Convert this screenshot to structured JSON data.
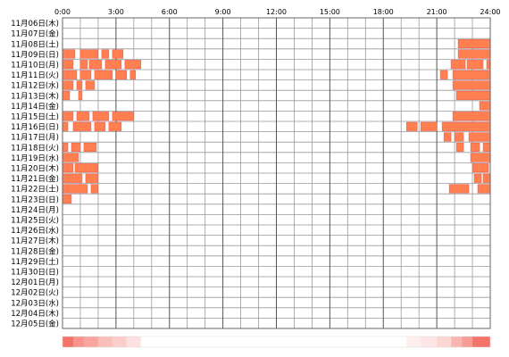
{
  "chart_data": {
    "type": "heatmap",
    "x_ticks": [
      "0:00",
      "3:00",
      "6:00",
      "9:00",
      "12:00",
      "15:00",
      "18:00",
      "21:00",
      "24:00"
    ],
    "x_range_hours": [
      0,
      24
    ],
    "rows": [
      {
        "label": "11月06日(木)",
        "segments": []
      },
      {
        "label": "11月07日(金)",
        "segments": []
      },
      {
        "label": "11月08日(土)",
        "segments": [
          [
            22.2,
            24.0
          ]
        ]
      },
      {
        "label": "11月09日(日)",
        "segments": [
          [
            0.0,
            0.7
          ],
          [
            1.0,
            2.0
          ],
          [
            2.2,
            2.6
          ],
          [
            2.8,
            3.4
          ],
          [
            22.2,
            24.0
          ]
        ]
      },
      {
        "label": "11月10日(月)",
        "segments": [
          [
            0.0,
            0.6
          ],
          [
            1.0,
            1.4
          ],
          [
            1.5,
            2.2
          ],
          [
            2.4,
            3.3
          ],
          [
            3.5,
            4.4
          ],
          [
            21.8,
            22.6
          ],
          [
            22.7,
            23.6
          ],
          [
            23.8,
            24.0
          ]
        ]
      },
      {
        "label": "11月11日(火)",
        "segments": [
          [
            0.0,
            0.8
          ],
          [
            1.0,
            1.6
          ],
          [
            1.8,
            2.8
          ],
          [
            3.0,
            3.6
          ],
          [
            3.8,
            4.1
          ],
          [
            21.2,
            21.6
          ],
          [
            21.9,
            24.0
          ]
        ]
      },
      {
        "label": "11月12日(水)",
        "segments": [
          [
            0.0,
            0.6
          ],
          [
            0.8,
            1.1
          ],
          [
            1.3,
            1.8
          ],
          [
            21.9,
            24.0
          ]
        ]
      },
      {
        "label": "11月13日(木)",
        "segments": [
          [
            0.0,
            0.4
          ],
          [
            0.9,
            1.1
          ],
          [
            22.1,
            24.0
          ]
        ]
      },
      {
        "label": "11月14日(金)",
        "segments": [
          [
            23.4,
            24.0
          ]
        ]
      },
      {
        "label": "11月15日(土)",
        "segments": [
          [
            0.0,
            0.6
          ],
          [
            0.8,
            1.5
          ],
          [
            1.7,
            2.6
          ],
          [
            2.8,
            4.0
          ],
          [
            21.9,
            24.0
          ]
        ]
      },
      {
        "label": "11月16日(日)",
        "segments": [
          [
            0.0,
            0.3
          ],
          [
            0.6,
            1.6
          ],
          [
            1.8,
            2.4
          ],
          [
            2.6,
            3.3
          ],
          [
            19.3,
            19.9
          ],
          [
            20.1,
            21.0
          ],
          [
            21.3,
            24.0
          ]
        ]
      },
      {
        "label": "11月17日(月)",
        "segments": [
          [
            21.4,
            21.8
          ],
          [
            22.0,
            22.5
          ],
          [
            22.8,
            24.0
          ]
        ]
      },
      {
        "label": "11月18日(火)",
        "segments": [
          [
            0.0,
            0.3
          ],
          [
            0.5,
            1.0
          ],
          [
            1.2,
            1.9
          ],
          [
            22.1,
            22.5
          ],
          [
            22.9,
            23.4
          ],
          [
            23.6,
            24.0
          ]
        ]
      },
      {
        "label": "11月19日(水)",
        "segments": [
          [
            0.0,
            0.9
          ],
          [
            22.9,
            24.0
          ]
        ]
      },
      {
        "label": "11月20日(木)",
        "segments": [
          [
            0.0,
            0.6
          ],
          [
            0.7,
            2.0
          ],
          [
            23.0,
            23.9
          ]
        ]
      },
      {
        "label": "11月21日(金)",
        "segments": [
          [
            0.0,
            1.1
          ],
          [
            1.3,
            2.0
          ],
          [
            23.1,
            23.5
          ],
          [
            23.6,
            24.0
          ]
        ]
      },
      {
        "label": "11月22日(土)",
        "segments": [
          [
            0.0,
            1.4
          ],
          [
            1.6,
            2.0
          ],
          [
            21.7,
            22.8
          ],
          [
            23.3,
            24.0
          ]
        ]
      },
      {
        "label": "11月23日(日)",
        "segments": [
          [
            0.0,
            0.5
          ]
        ]
      },
      {
        "label": "11月24日(月)",
        "segments": []
      },
      {
        "label": "11月25日(火)",
        "segments": []
      },
      {
        "label": "11月26日(水)",
        "segments": []
      },
      {
        "label": "11月27日(木)",
        "segments": []
      },
      {
        "label": "11月28日(金)",
        "segments": []
      },
      {
        "label": "11月29日(土)",
        "segments": []
      },
      {
        "label": "11月30日(日)",
        "segments": []
      },
      {
        "label": "12月01日(月)",
        "segments": []
      },
      {
        "label": "12月02日(火)",
        "segments": []
      },
      {
        "label": "12月03日(水)",
        "segments": []
      },
      {
        "label": "12月04日(木)",
        "segments": []
      },
      {
        "label": "12月05日(金)",
        "segments": []
      }
    ],
    "summary_bar": {
      "peak_color": "#f25a50",
      "segments": [
        {
          "start": 0.0,
          "end": 0.6,
          "intensity": 0.85
        },
        {
          "start": 0.6,
          "end": 1.2,
          "intensity": 0.65
        },
        {
          "start": 1.2,
          "end": 2.0,
          "intensity": 0.55
        },
        {
          "start": 2.0,
          "end": 2.8,
          "intensity": 0.4
        },
        {
          "start": 2.8,
          "end": 3.6,
          "intensity": 0.3
        },
        {
          "start": 3.6,
          "end": 4.4,
          "intensity": 0.18
        },
        {
          "start": 4.4,
          "end": 19.3,
          "intensity": 0.0
        },
        {
          "start": 19.3,
          "end": 20.1,
          "intensity": 0.1
        },
        {
          "start": 20.1,
          "end": 21.0,
          "intensity": 0.15
        },
        {
          "start": 21.0,
          "end": 21.8,
          "intensity": 0.25
        },
        {
          "start": 21.8,
          "end": 22.4,
          "intensity": 0.45
        },
        {
          "start": 22.4,
          "end": 23.0,
          "intensity": 0.6
        },
        {
          "start": 23.0,
          "end": 24.0,
          "intensity": 0.85
        }
      ]
    },
    "colors": {
      "segment_fill": "#ff7f50",
      "segment_stroke": "#f2564a",
      "grid_line": "#999999",
      "major_line": "#555555",
      "frame": "#666666"
    },
    "grid": true
  }
}
